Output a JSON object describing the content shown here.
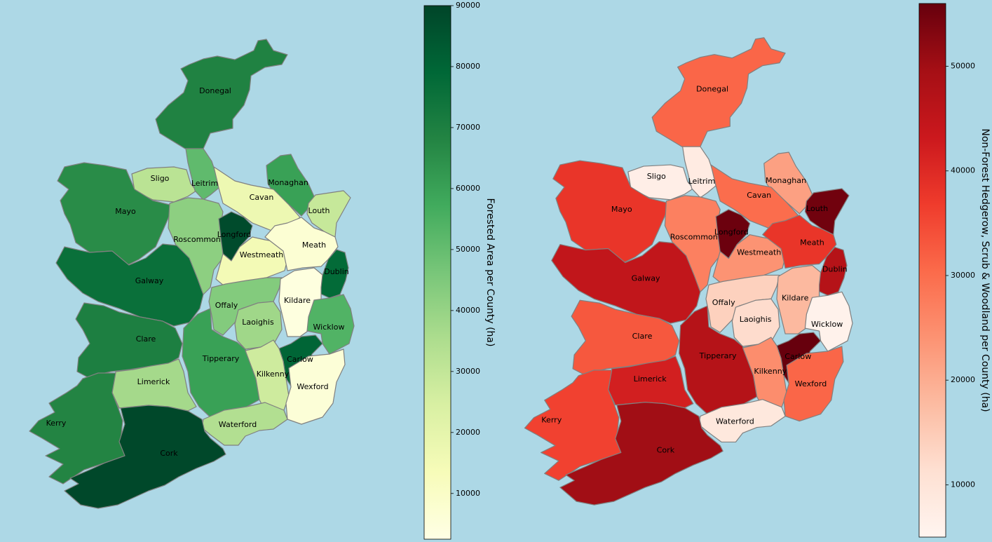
{
  "maps": [
    {
      "id": "forest",
      "colorbar_label": "Forested Area per County (ha)",
      "colormap": "Greens",
      "range": [
        2500,
        90000
      ],
      "ticks": [
        10000,
        20000,
        30000,
        40000,
        50000,
        60000,
        70000,
        80000,
        90000
      ],
      "counties": [
        {
          "name": "Donegal",
          "value": 69000
        },
        {
          "name": "Sligo",
          "value": 32000
        },
        {
          "name": "Leitrim",
          "value": 51000
        },
        {
          "name": "Mayo",
          "value": 66000
        },
        {
          "name": "Monaghan",
          "value": 60000
        },
        {
          "name": "Cavan",
          "value": 17000
        },
        {
          "name": "Louth",
          "value": 29000
        },
        {
          "name": "Roscommon",
          "value": 42000
        },
        {
          "name": "Longford",
          "value": 88000
        },
        {
          "name": "Westmeath",
          "value": 15000
        },
        {
          "name": "Meath",
          "value": 7000
        },
        {
          "name": "Dublin",
          "value": 78000
        },
        {
          "name": "Galway",
          "value": 76000
        },
        {
          "name": "Offaly",
          "value": 44000
        },
        {
          "name": "Kildare",
          "value": 4000
        },
        {
          "name": "Laoighis",
          "value": 38000
        },
        {
          "name": "Wicklow",
          "value": 54000
        },
        {
          "name": "Clare",
          "value": 70000
        },
        {
          "name": "Tipperary",
          "value": 60000
        },
        {
          "name": "Carlow",
          "value": 80000
        },
        {
          "name": "Kilkenny",
          "value": 27000
        },
        {
          "name": "Wexford",
          "value": 6000
        },
        {
          "name": "Limerick",
          "value": 37000
        },
        {
          "name": "Kerry",
          "value": 68000
        },
        {
          "name": "Waterford",
          "value": 34000
        },
        {
          "name": "Cork",
          "value": 89000
        }
      ]
    },
    {
      "id": "hedgerow",
      "colorbar_label": "Non-Forest Hedgerow, Scrub & Woodland per County (ha)",
      "colormap": "Reds",
      "range": [
        5000,
        56000
      ],
      "ticks": [
        10000,
        20000,
        30000,
        40000,
        50000
      ],
      "counties": [
        {
          "name": "Donegal",
          "value": 31000
        },
        {
          "name": "Sligo",
          "value": 7000
        },
        {
          "name": "Leitrim",
          "value": 8000
        },
        {
          "name": "Mayo",
          "value": 38000
        },
        {
          "name": "Monaghan",
          "value": 22000
        },
        {
          "name": "Cavan",
          "value": 30000
        },
        {
          "name": "Louth",
          "value": 55000
        },
        {
          "name": "Roscommon",
          "value": 27000
        },
        {
          "name": "Longford",
          "value": 55500
        },
        {
          "name": "Westmeath",
          "value": 24000
        },
        {
          "name": "Meath",
          "value": 38000
        },
        {
          "name": "Dublin",
          "value": 47000
        },
        {
          "name": "Galway",
          "value": 45000
        },
        {
          "name": "Offaly",
          "value": 14000
        },
        {
          "name": "Kildare",
          "value": 18000
        },
        {
          "name": "Laoighis",
          "value": 12000
        },
        {
          "name": "Wicklow",
          "value": 6000
        },
        {
          "name": "Clare",
          "value": 33000
        },
        {
          "name": "Tipperary",
          "value": 47000
        },
        {
          "name": "Carlow",
          "value": 56000
        },
        {
          "name": "Kilkenny",
          "value": 25000
        },
        {
          "name": "Wexford",
          "value": 31000
        },
        {
          "name": "Limerick",
          "value": 42000
        },
        {
          "name": "Kerry",
          "value": 36000
        },
        {
          "name": "Waterford",
          "value": 9000
        },
        {
          "name": "Cork",
          "value": 50000
        }
      ]
    }
  ]
}
